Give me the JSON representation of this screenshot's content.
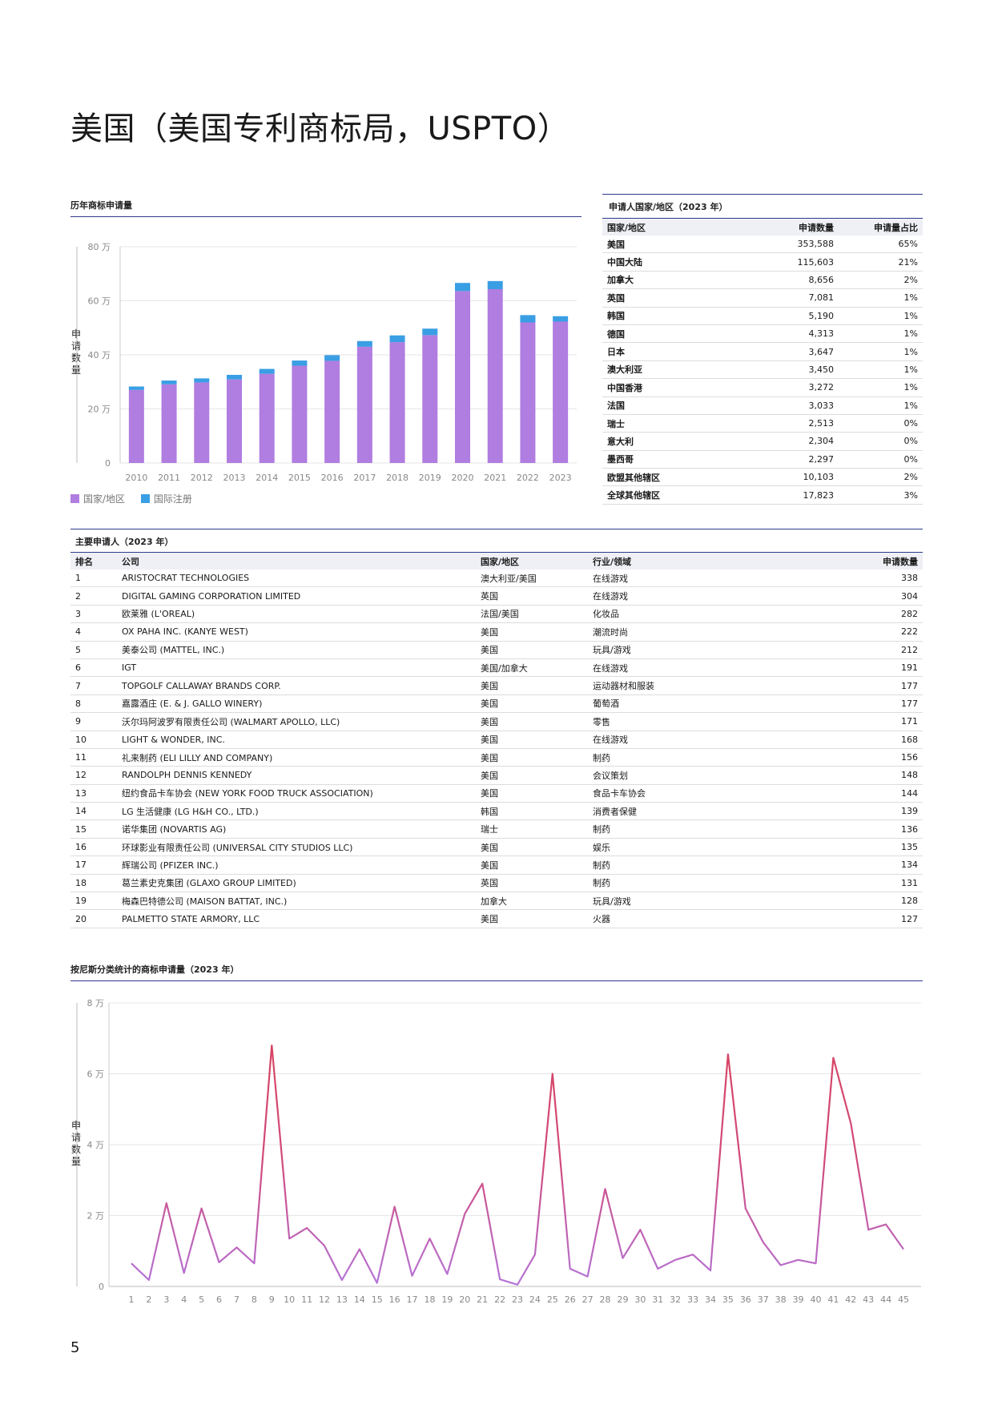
{
  "page": {
    "title": "美国（美国专利商标局，USPTO）",
    "page_number": "5",
    "colors": {
      "accent_rule": "#2e3a8c",
      "national": "#b07de0",
      "international": "#3a9ee4",
      "line_peak": "#d9435b",
      "line_base": "#b474d9"
    }
  },
  "filings_chart": {
    "title": "历年商标申请量",
    "ylabel": "申请数量",
    "legend": [
      "国家/地区",
      "国际注册"
    ],
    "chart_data": {
      "type": "bar",
      "stacked": true,
      "categories": [
        "2010",
        "2011",
        "2012",
        "2013",
        "2014",
        "2015",
        "2016",
        "2017",
        "2018",
        "2019",
        "2020",
        "2021",
        "2022",
        "2023"
      ],
      "series": [
        {
          "name": "国家/地区",
          "values": [
            270000,
            291000,
            298000,
            309000,
            330000,
            360000,
            378000,
            430000,
            447000,
            473000,
            636000,
            643000,
            520000,
            523000
          ]
        },
        {
          "name": "国际注册",
          "values": [
            13000,
            14000,
            15000,
            17000,
            18000,
            19000,
            21000,
            21000,
            25000,
            24000,
            30000,
            30000,
            27000,
            20000
          ]
        }
      ],
      "yticks": [
        0,
        200000,
        400000,
        600000,
        800000
      ],
      "ytick_labels": [
        "0",
        "20 万",
        "40 万",
        "60 万",
        "80 万"
      ],
      "ylim": [
        0,
        800000
      ],
      "legend_position": "bottom-left",
      "grid": true
    }
  },
  "country_table": {
    "title": "申请人国家/地区（2023 年）",
    "headers": [
      "国家/地区",
      "申请数量",
      "申请量占比"
    ],
    "rows": [
      [
        "美国",
        "353,588",
        "65%"
      ],
      [
        "中国大陆",
        "115,603",
        "21%"
      ],
      [
        "加拿大",
        "8,656",
        "2%"
      ],
      [
        "英国",
        "7,081",
        "1%"
      ],
      [
        "韩国",
        "5,190",
        "1%"
      ],
      [
        "德国",
        "4,313",
        "1%"
      ],
      [
        "日本",
        "3,647",
        "1%"
      ],
      [
        "澳大利亚",
        "3,450",
        "1%"
      ],
      [
        "中国香港",
        "3,272",
        "1%"
      ],
      [
        "法国",
        "3,033",
        "1%"
      ],
      [
        "瑞士",
        "2,513",
        "0%"
      ],
      [
        "意大利",
        "2,304",
        "0%"
      ],
      [
        "墨西哥",
        "2,297",
        "0%"
      ],
      [
        "欧盟其他辖区",
        "10,103",
        "2%"
      ],
      [
        "全球其他辖区",
        "17,823",
        "3%"
      ]
    ]
  },
  "applicants_table": {
    "title": "主要申请人（2023 年）",
    "headers": [
      "排名",
      "公司",
      "国家/地区",
      "行业/领域",
      "申请数量"
    ],
    "rows": [
      [
        "1",
        "ARISTOCRAT TECHNOLOGIES",
        "澳大利亚/美国",
        "在线游戏",
        "338"
      ],
      [
        "2",
        "DIGITAL GAMING CORPORATION LIMITED",
        "英国",
        "在线游戏",
        "304"
      ],
      [
        "3",
        "欧莱雅 (L'OREAL)",
        "法国/美国",
        "化妆品",
        "282"
      ],
      [
        "4",
        "OX PAHA INC. (KANYE WEST)",
        "美国",
        "潮流时尚",
        "222"
      ],
      [
        "5",
        "美泰公司 (MATTEL, INC.)",
        "美国",
        "玩具/游戏",
        "212"
      ],
      [
        "6",
        "IGT",
        "美国/加拿大",
        "在线游戏",
        "191"
      ],
      [
        "7",
        "TOPGOLF CALLAWAY BRANDS CORP.",
        "美国",
        "运动器材和服装",
        "177"
      ],
      [
        "8",
        "嘉露酒庄 (E. & J. GALLO WINERY)",
        "美国",
        "葡萄酒",
        "177"
      ],
      [
        "9",
        "沃尔玛阿波罗有限责任公司 (WALMART APOLLO, LLC)",
        "美国",
        "零售",
        "171"
      ],
      [
        "10",
        "LIGHT & WONDER, INC.",
        "美国",
        "在线游戏",
        "168"
      ],
      [
        "11",
        "礼来制药 (ELI LILLY AND COMPANY)",
        "美国",
        "制药",
        "156"
      ],
      [
        "12",
        "RANDOLPH DENNIS KENNEDY",
        "美国",
        "会议策划",
        "148"
      ],
      [
        "13",
        "纽约食品卡车协会 (NEW YORK FOOD TRUCK ASSOCIATION)",
        "美国",
        "食品卡车协会",
        "144"
      ],
      [
        "14",
        "LG 生活健康 (LG H&H CO., LTD.)",
        "韩国",
        "消费者保健",
        "139"
      ],
      [
        "15",
        "诺华集团 (NOVARTIS AG)",
        "瑞士",
        "制药",
        "136"
      ],
      [
        "16",
        "环球影业有限责任公司 (UNIVERSAL CITY STUDIOS LLC)",
        "美国",
        "娱乐",
        "135"
      ],
      [
        "17",
        "辉瑞公司 (PFIZER INC.)",
        "美国",
        "制药",
        "134"
      ],
      [
        "18",
        "葛兰素史克集团 (GLAXO GROUP LIMITED)",
        "英国",
        "制药",
        "131"
      ],
      [
        "19",
        "梅森巴特德公司 (MAISON BATTAT, INC.)",
        "加拿大",
        "玩具/游戏",
        "128"
      ],
      [
        "20",
        "PALMETTO STATE ARMORY, LLC",
        "美国",
        "火器",
        "127"
      ]
    ]
  },
  "class_chart": {
    "title": "按尼斯分类统计的商标申请量（2023 年）",
    "ylabel": "申请数量",
    "chart_data": {
      "type": "line",
      "x": [
        1,
        2,
        3,
        4,
        5,
        6,
        7,
        8,
        9,
        10,
        11,
        12,
        13,
        14,
        15,
        16,
        17,
        18,
        19,
        20,
        21,
        22,
        23,
        24,
        25,
        26,
        27,
        28,
        29,
        30,
        31,
        32,
        33,
        34,
        35,
        36,
        37,
        38,
        39,
        40,
        41,
        42,
        43,
        44,
        45
      ],
      "values": [
        6500,
        1800,
        23500,
        3800,
        22000,
        6800,
        11000,
        6500,
        68000,
        13500,
        16500,
        11500,
        1800,
        10500,
        1000,
        22500,
        3000,
        13500,
        3500,
        20500,
        29000,
        2000,
        500,
        9000,
        60000,
        5000,
        2800,
        27500,
        8000,
        16000,
        5000,
        7500,
        9000,
        4500,
        65500,
        22000,
        12500,
        6000,
        7500,
        6500,
        64500,
        46000,
        16000,
        17500,
        10500
      ],
      "yticks": [
        0,
        20000,
        40000,
        60000,
        80000
      ],
      "ytick_labels": [
        "0",
        "2 万",
        "4 万",
        "6 万",
        "8 万"
      ],
      "ylim": [
        0,
        80000
      ],
      "grid": true
    }
  }
}
